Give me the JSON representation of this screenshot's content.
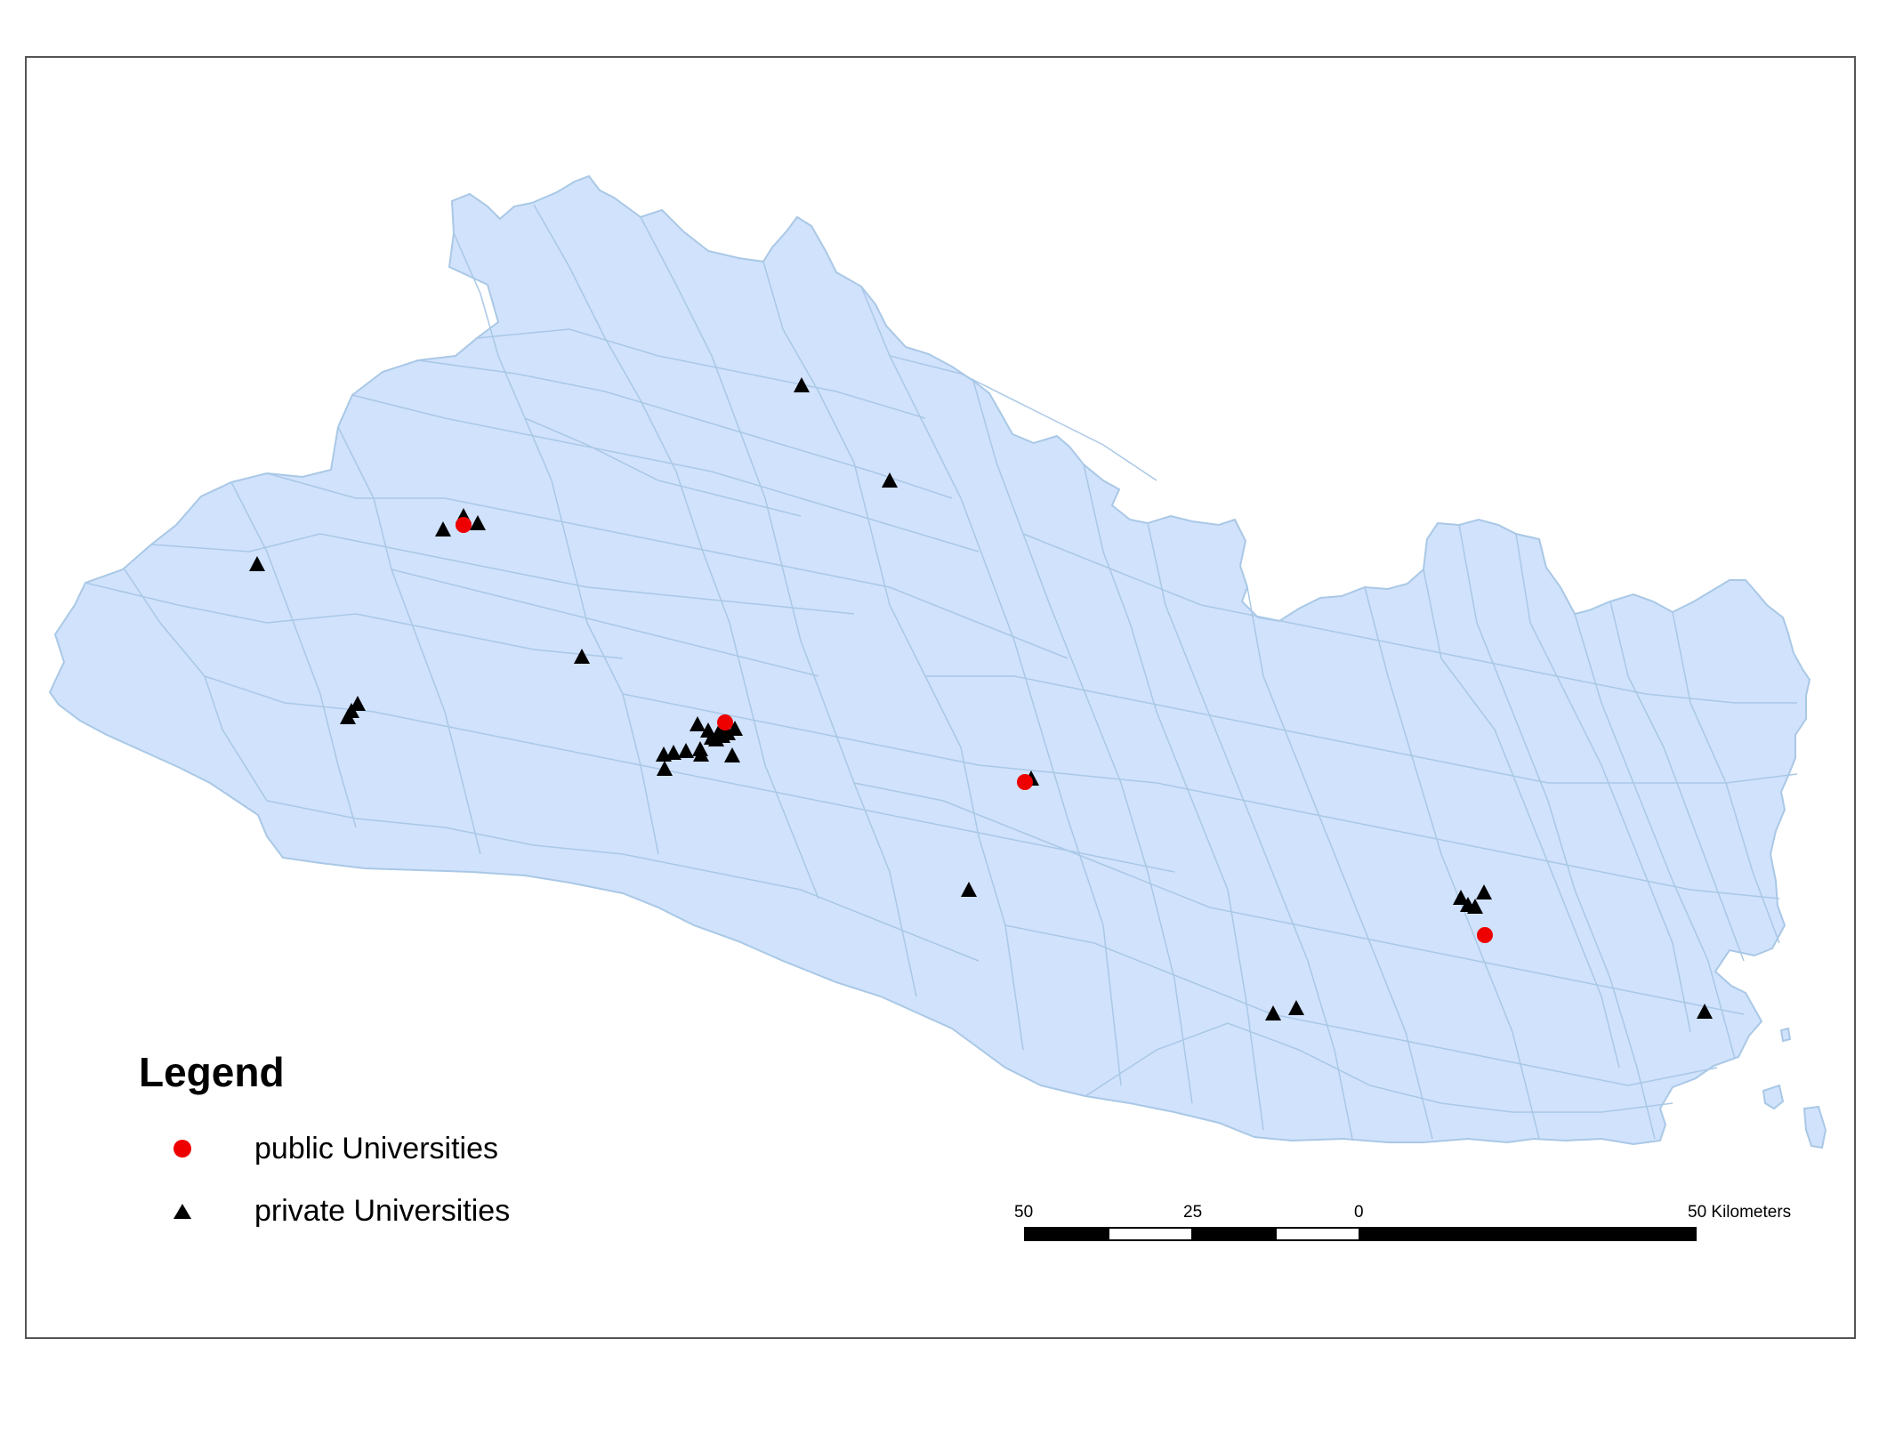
{
  "map": {
    "land_color": "#d1e2fc",
    "border_color": "#a9c8e6",
    "frame_color": "#555555"
  },
  "legend": {
    "title": "Legend",
    "items": [
      {
        "label": "public Universities",
        "symbol": "circle",
        "color": "#ee0000"
      },
      {
        "label": "private Universities",
        "symbol": "triangle",
        "color": "#000000"
      }
    ]
  },
  "scale_bar": {
    "labels": [
      "50",
      "25",
      "0",
      "50 Kilometers"
    ]
  }
}
